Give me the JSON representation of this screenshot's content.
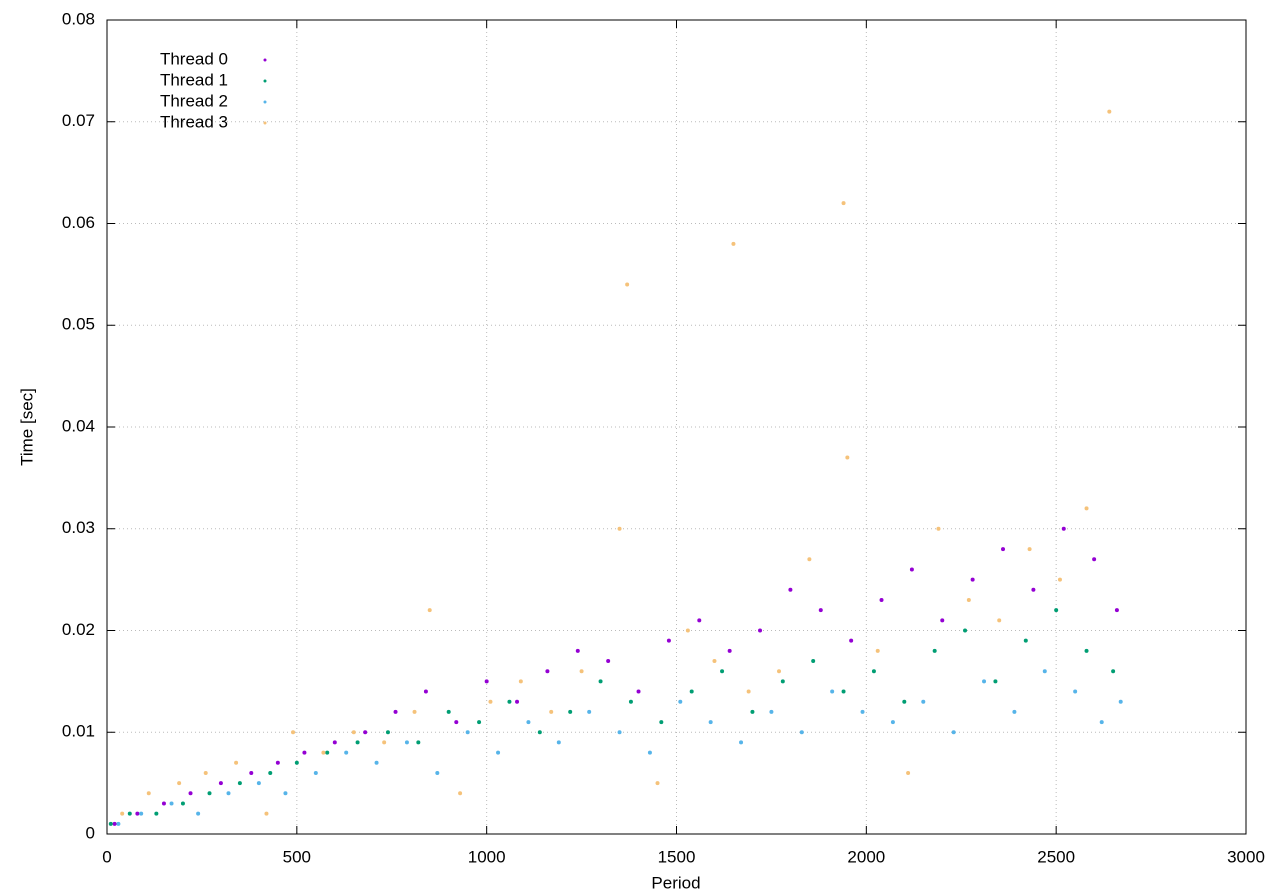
{
  "chart_data": {
    "type": "scatter",
    "x_label": "Period",
    "y_label": "Time [sec]",
    "xlim": [
      0,
      3000
    ],
    "xticks": [
      0,
      500,
      1000,
      1500,
      2000,
      2500,
      3000
    ],
    "ylim": [
      0,
      0.08
    ],
    "yticks": [
      0,
      0.01,
      0.02,
      0.03,
      0.04,
      0.05,
      0.06,
      0.07,
      0.08
    ],
    "grid": true,
    "legend": "top-left",
    "series": [
      {
        "name": "Thread 0",
        "color": "#9400d3",
        "x": [
          20,
          80,
          150,
          220,
          300,
          380,
          450,
          520,
          600,
          680,
          760,
          840,
          920,
          1000,
          1080,
          1160,
          1240,
          1320,
          1400,
          1480,
          1560,
          1640,
          1720,
          1800,
          1880,
          1960,
          2040,
          2120,
          2200,
          2280,
          2360,
          2440,
          2520,
          2600,
          2660
        ],
        "values": [
          0.001,
          0.002,
          0.003,
          0.004,
          0.005,
          0.006,
          0.007,
          0.008,
          0.009,
          0.01,
          0.012,
          0.014,
          0.011,
          0.015,
          0.013,
          0.016,
          0.018,
          0.017,
          0.014,
          0.019,
          0.021,
          0.018,
          0.02,
          0.024,
          0.022,
          0.019,
          0.023,
          0.026,
          0.021,
          0.025,
          0.028,
          0.024,
          0.03,
          0.027,
          0.022
        ]
      },
      {
        "name": "Thread 1",
        "color": "#009e73",
        "x": [
          10,
          60,
          130,
          200,
          270,
          350,
          430,
          500,
          580,
          660,
          740,
          820,
          900,
          980,
          1060,
          1140,
          1220,
          1300,
          1380,
          1460,
          1540,
          1620,
          1700,
          1780,
          1860,
          1940,
          2020,
          2100,
          2180,
          2260,
          2340,
          2420,
          2500,
          2580,
          2650
        ],
        "values": [
          0.001,
          0.002,
          0.002,
          0.003,
          0.004,
          0.005,
          0.006,
          0.007,
          0.008,
          0.009,
          0.01,
          0.009,
          0.012,
          0.011,
          0.013,
          0.01,
          0.012,
          0.015,
          0.013,
          0.011,
          0.014,
          0.016,
          0.012,
          0.015,
          0.017,
          0.014,
          0.016,
          0.013,
          0.018,
          0.02,
          0.015,
          0.019,
          0.022,
          0.018,
          0.016
        ]
      },
      {
        "name": "Thread 2",
        "color": "#56b4e9",
        "x": [
          30,
          90,
          170,
          240,
          320,
          400,
          470,
          550,
          630,
          710,
          790,
          870,
          950,
          1030,
          1110,
          1190,
          1270,
          1350,
          1430,
          1510,
          1590,
          1670,
          1750,
          1830,
          1910,
          1990,
          2070,
          2150,
          2230,
          2310,
          2390,
          2470,
          2550,
          2620,
          2670
        ],
        "values": [
          0.001,
          0.002,
          0.003,
          0.002,
          0.004,
          0.005,
          0.004,
          0.006,
          0.008,
          0.007,
          0.009,
          0.006,
          0.01,
          0.008,
          0.011,
          0.009,
          0.012,
          0.01,
          0.008,
          0.013,
          0.011,
          0.009,
          0.012,
          0.01,
          0.014,
          0.012,
          0.011,
          0.013,
          0.01,
          0.015,
          0.012,
          0.016,
          0.014,
          0.011,
          0.013
        ]
      },
      {
        "name": "Thread 3",
        "color": "#f5c27a",
        "x": [
          40,
          110,
          190,
          260,
          340,
          420,
          490,
          570,
          650,
          730,
          810,
          850,
          930,
          1010,
          1090,
          1170,
          1250,
          1350,
          1370,
          1450,
          1530,
          1600,
          1650,
          1690,
          1770,
          1850,
          1940,
          1950,
          2030,
          2110,
          2190,
          2270,
          2350,
          2430,
          2510,
          2580,
          2640
        ],
        "values": [
          0.002,
          0.004,
          0.005,
          0.006,
          0.007,
          0.002,
          0.01,
          0.008,
          0.01,
          0.009,
          0.012,
          0.022,
          0.004,
          0.013,
          0.015,
          0.012,
          0.016,
          0.03,
          0.054,
          0.005,
          0.02,
          0.017,
          0.058,
          0.014,
          0.016,
          0.027,
          0.062,
          0.037,
          0.018,
          0.006,
          0.03,
          0.023,
          0.021,
          0.028,
          0.025,
          0.032,
          0.071
        ]
      }
    ]
  }
}
